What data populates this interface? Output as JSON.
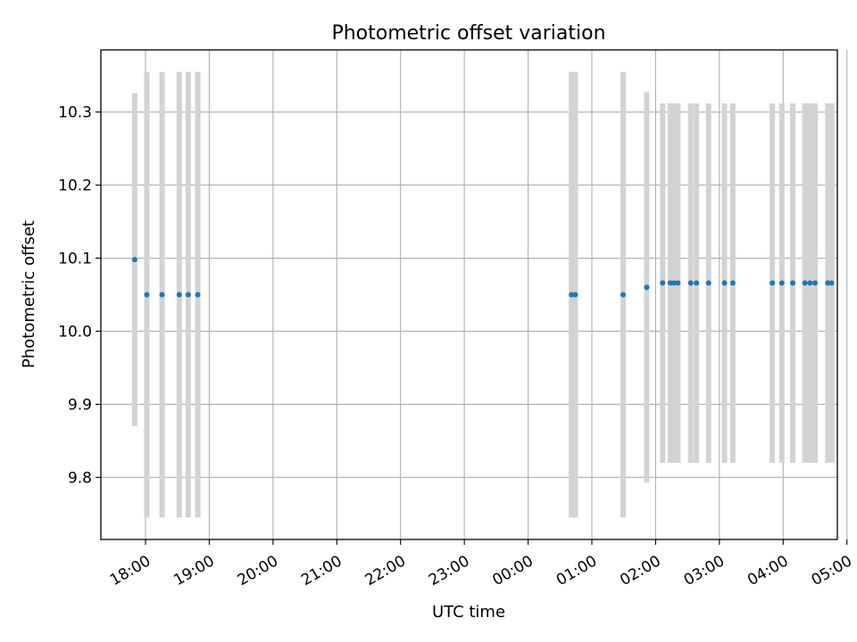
{
  "chart_data": {
    "type": "scatter",
    "title": "Photometric offset variation",
    "xlabel": "UTC time",
    "ylabel": "Photometric offset",
    "x_unit": "UTC hours since 18:00 of the first night",
    "xlim": [
      -0.7,
      10.85
    ],
    "ylim": [
      9.715,
      10.385
    ],
    "grid": true,
    "x_ticks": [
      {
        "value": 0,
        "label": "18:00"
      },
      {
        "value": 1,
        "label": "19:00"
      },
      {
        "value": 2,
        "label": "20:00"
      },
      {
        "value": 3,
        "label": "21:00"
      },
      {
        "value": 4,
        "label": "22:00"
      },
      {
        "value": 5,
        "label": "23:00"
      },
      {
        "value": 6,
        "label": "00:00"
      },
      {
        "value": 7,
        "label": "01:00"
      },
      {
        "value": 8,
        "label": "02:00"
      },
      {
        "value": 9,
        "label": "03:00"
      },
      {
        "value": 10,
        "label": "04:00"
      },
      {
        "value": 11,
        "label": "05:00"
      }
    ],
    "y_ticks": [
      {
        "value": 9.8,
        "label": "9.8"
      },
      {
        "value": 9.9,
        "label": "9.9"
      },
      {
        "value": 10.0,
        "label": "10.0"
      },
      {
        "value": 10.1,
        "label": "10.1"
      },
      {
        "value": 10.2,
        "label": "10.2"
      },
      {
        "value": 10.3,
        "label": "10.3"
      }
    ],
    "marker_color": "#1f77b4",
    "errorbar_color": "#d3d3d3",
    "points": [
      {
        "x": -0.17,
        "y": 10.098,
        "err": 0.228
      },
      {
        "x": 0.02,
        "y": 10.05,
        "err": 0.305
      },
      {
        "x": 0.26,
        "y": 10.05,
        "err": 0.305
      },
      {
        "x": 0.53,
        "y": 10.05,
        "err": 0.305
      },
      {
        "x": 0.67,
        "y": 10.05,
        "err": 0.305
      },
      {
        "x": 0.82,
        "y": 10.05,
        "err": 0.305
      },
      {
        "x": 6.68,
        "y": 10.05,
        "err": 0.305
      },
      {
        "x": 6.74,
        "y": 10.05,
        "err": 0.305
      },
      {
        "x": 7.49,
        "y": 10.05,
        "err": 0.305
      },
      {
        "x": 7.86,
        "y": 10.06,
        "err": 0.267
      },
      {
        "x": 8.11,
        "y": 10.066,
        "err": 0.246
      },
      {
        "x": 8.23,
        "y": 10.066,
        "err": 0.246
      },
      {
        "x": 8.29,
        "y": 10.066,
        "err": 0.246
      },
      {
        "x": 8.35,
        "y": 10.066,
        "err": 0.246
      },
      {
        "x": 8.55,
        "y": 10.066,
        "err": 0.246
      },
      {
        "x": 8.64,
        "y": 10.066,
        "err": 0.246
      },
      {
        "x": 8.83,
        "y": 10.066,
        "err": 0.246
      },
      {
        "x": 9.08,
        "y": 10.066,
        "err": 0.246
      },
      {
        "x": 9.21,
        "y": 10.066,
        "err": 0.246
      },
      {
        "x": 9.83,
        "y": 10.066,
        "err": 0.246
      },
      {
        "x": 9.98,
        "y": 10.066,
        "err": 0.246
      },
      {
        "x": 10.15,
        "y": 10.066,
        "err": 0.246
      },
      {
        "x": 10.34,
        "y": 10.066,
        "err": 0.246
      },
      {
        "x": 10.42,
        "y": 10.066,
        "err": 0.246
      },
      {
        "x": 10.5,
        "y": 10.066,
        "err": 0.246
      },
      {
        "x": 10.7,
        "y": 10.066,
        "err": 0.246
      },
      {
        "x": 10.76,
        "y": 10.066,
        "err": 0.246
      }
    ]
  }
}
